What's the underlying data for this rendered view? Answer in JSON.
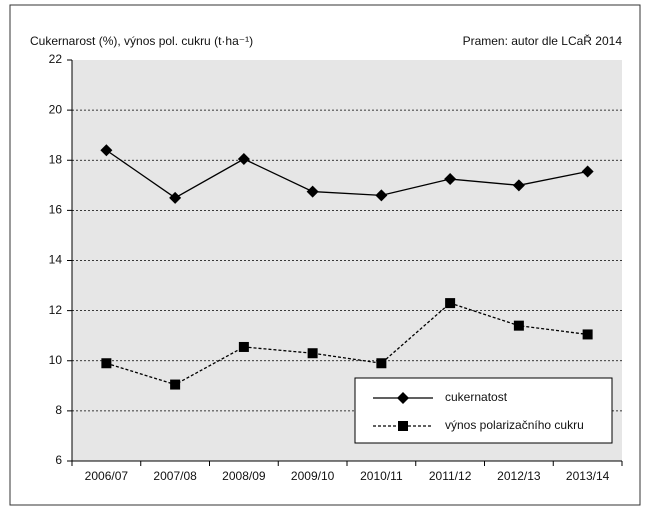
{
  "chart_data": {
    "type": "line",
    "title": "Cukernarost (%), výnos pol. cukru (t·ha⁻¹)",
    "source": "Pramen: autor dle LCaŘ 2014",
    "categories": [
      "2006/07",
      "2007/08",
      "2008/09",
      "2009/10",
      "2010/11",
      "2011/12",
      "2012/13",
      "2013/14"
    ],
    "series": [
      {
        "name": "cukernatost",
        "color": "#000000",
        "style": "solid",
        "marker": "diamond",
        "values": [
          18.4,
          16.5,
          18.05,
          16.75,
          16.6,
          17.25,
          17.0,
          17.55
        ]
      },
      {
        "name": "výnos polarizačního cukru",
        "color": "#000000",
        "style": "dashed",
        "marker": "square",
        "values": [
          9.9,
          9.05,
          10.55,
          10.3,
          9.9,
          12.3,
          11.4,
          11.05
        ]
      }
    ],
    "ylim": [
      6,
      22
    ],
    "yticks": [
      6,
      8,
      10,
      12,
      14,
      16,
      18,
      20,
      22
    ],
    "grid": true,
    "legend": "lower right"
  }
}
